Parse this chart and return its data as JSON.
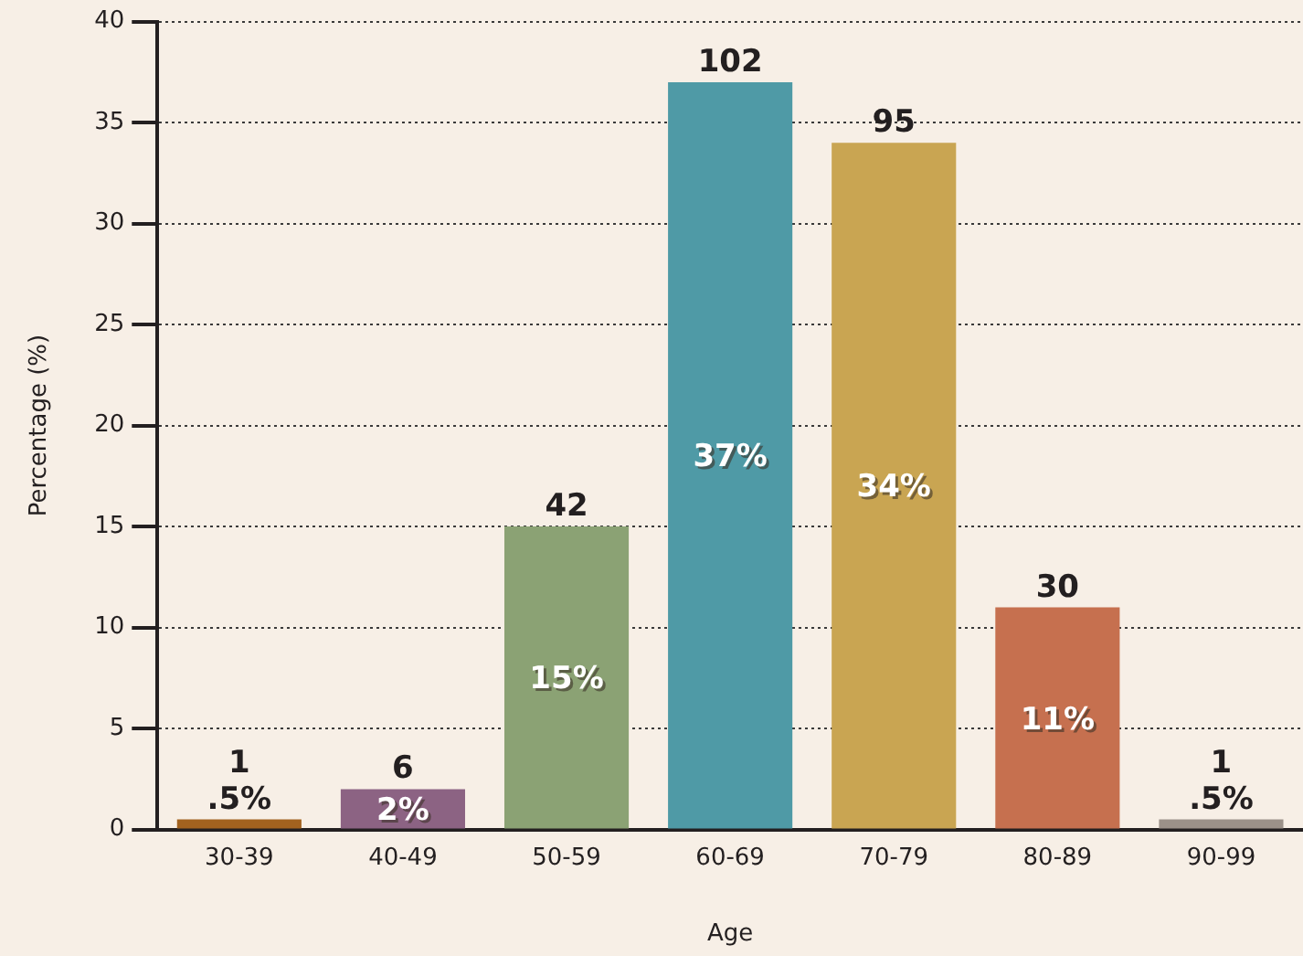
{
  "chart_data": {
    "type": "bar",
    "xlabel": "Age",
    "ylabel": "Percentage (%)",
    "categories": [
      "30-39",
      "40-49",
      "50-59",
      "60-69",
      "70-79",
      "80-89",
      "90-99"
    ],
    "values": [
      0.5,
      2,
      15,
      37,
      34,
      11,
      0.5
    ],
    "colors": [
      "#a2621f",
      "#8c6383",
      "#8ba274",
      "#4f9aa6",
      "#c9a552",
      "#c6704f",
      "#9b9189"
    ],
    "value_labels": [
      ".5%",
      "2%",
      "15%",
      "37%",
      "34%",
      "11%",
      ".5%"
    ],
    "annotations": [
      {
        "text": "1",
        "x": "30-39",
        "y": 0.5
      },
      {
        "text": "6",
        "x": "40-49",
        "y": 2
      },
      {
        "text": "42",
        "x": "50-59",
        "y": 15
      },
      {
        "text": "102",
        "x": "60-69",
        "y": 37
      },
      {
        "text": "95",
        "x": "70-79",
        "y": 34
      },
      {
        "text": "30",
        "x": "80-89",
        "y": 11
      },
      {
        "text": "1",
        "x": "90-99",
        "y": 0.5
      }
    ],
    "ylim": [
      0,
      40
    ],
    "yticks": [
      0,
      5,
      10,
      15,
      20,
      25,
      30,
      35,
      40
    ],
    "grid": "y",
    "legend": false
  }
}
